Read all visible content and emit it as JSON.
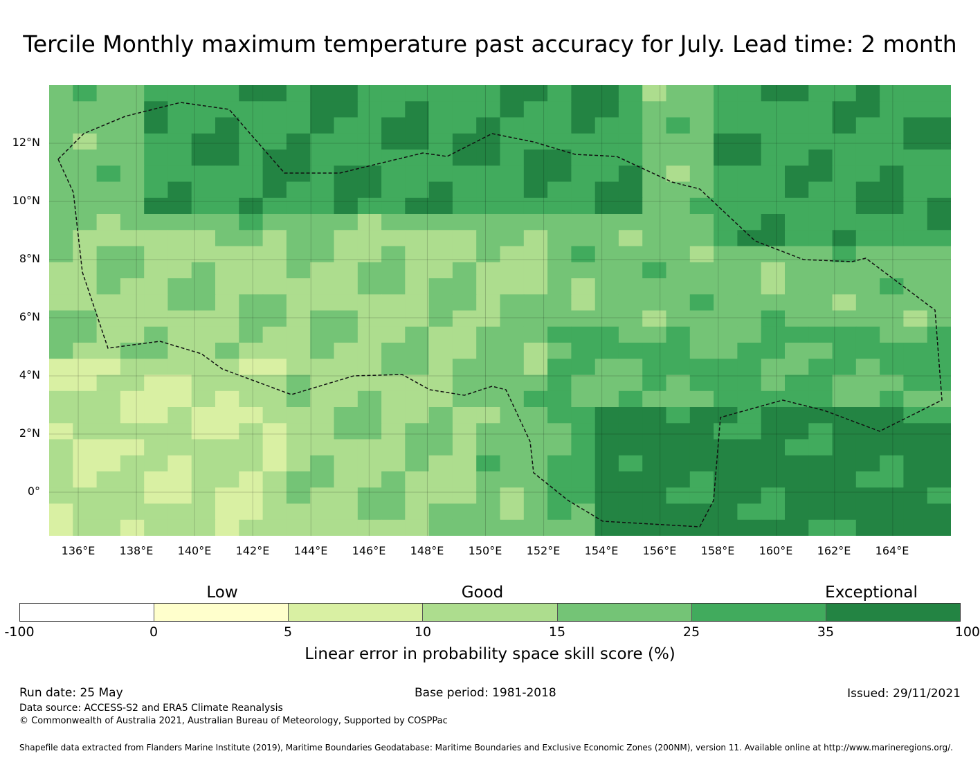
{
  "title": "Tercile Monthly maximum temperature past accuracy for July. Lead time: 2 month",
  "map": {
    "lat_labels": [
      "12°N",
      "10°N",
      "8°N",
      "6°N",
      "4°N",
      "2°N",
      "0°"
    ],
    "lon_labels": [
      "136°E",
      "138°E",
      "140°E",
      "142°E",
      "144°E",
      "146°E",
      "148°E",
      "150°E",
      "152°E",
      "154°E",
      "156°E",
      "158°E",
      "160°E",
      "162°E",
      "164°E"
    ],
    "lon_range": [
      135,
      166
    ],
    "lat_range": [
      -1.5,
      14
    ]
  },
  "colorbar": {
    "categories": [
      "Low",
      "Good",
      "Exceptional"
    ],
    "ticks": [
      "-100",
      "0",
      "5",
      "10",
      "15",
      "25",
      "35",
      "100"
    ],
    "colors": [
      "#ffffff",
      "#ffffcc",
      "#d9f0a3",
      "#addd8e",
      "#74c476",
      "#41ab5d",
      "#238443"
    ],
    "label": "Linear error in probability space skill score (%)"
  },
  "footer": {
    "run_date": "Run date: 25 May",
    "base_period": "Base period: 1981-2018",
    "issued": "Issued: 29/11/2021",
    "data_source": "Data source: ACCESS-S2 and ERA5 Climate Reanalysis",
    "copyright": "© Commonwealth of Australia 2021, Australian Bureau of Meteorology, Supported by COSPPac",
    "shapefile": "Shapefile data extracted from Flanders Marine Institute (2019), Maritime Boundaries Geodatabase: Maritime Boundaries and Exclusive Economic Zones (200NM), version 11. Available online at http://www.marineregions.org/."
  }
}
